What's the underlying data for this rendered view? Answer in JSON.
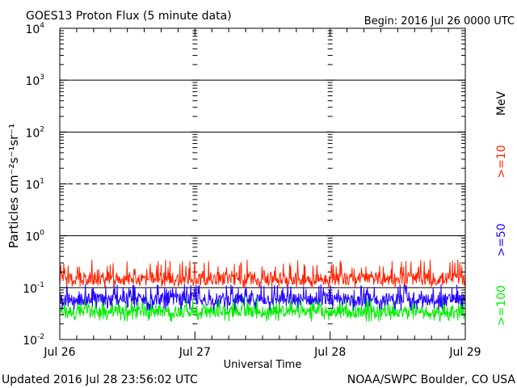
{
  "chart_data": {
    "type": "line",
    "title": "GOES13 Proton Flux (5 minute data)",
    "begin_label": "Begin: 2016 Jul 26 0000 UTC",
    "xlabel": "Universal Time",
    "ylabel": "Particles cm⁻²s⁻¹sr⁻¹",
    "yscale": "log",
    "ylim": [
      0.01,
      10000
    ],
    "y_ticks": [
      {
        "base": "10",
        "exp": "4"
      },
      {
        "base": "10",
        "exp": "3"
      },
      {
        "base": "10",
        "exp": "2"
      },
      {
        "base": "10",
        "exp": "1"
      },
      {
        "base": "10",
        "exp": "0"
      },
      {
        "base": "10",
        "exp": "-1"
      },
      {
        "base": "10",
        "exp": "-2"
      }
    ],
    "x_ticks": [
      "Jul 26",
      "Jul 27",
      "Jul 28",
      "Jul 29"
    ],
    "xlim": [
      "2016-07-26",
      "2016-07-29"
    ],
    "threshold_lines": [
      {
        "value": 1000,
        "style": "solid"
      },
      {
        "value": 100,
        "style": "solid"
      },
      {
        "value": 10,
        "style": "dashed"
      },
      {
        "value": 1,
        "style": "solid"
      },
      {
        "value": 0.1,
        "style": "solid"
      }
    ],
    "unit_label": "MeV",
    "series": [
      {
        "name": ">=10",
        "color": "#ff2200",
        "typical_value": 0.15,
        "range": [
          0.1,
          0.35
        ]
      },
      {
        "name": ">=50",
        "color": "#2200ff",
        "typical_value": 0.06,
        "range": [
          0.035,
          0.12
        ]
      },
      {
        "name": ">=100",
        "color": "#00ee00",
        "typical_value": 0.035,
        "range": [
          0.022,
          0.07
        ]
      }
    ]
  },
  "footer": {
    "updated": "Updated 2016 Jul 28 23:56:02 UTC",
    "source": "NOAA/SWPC Boulder, CO USA"
  }
}
